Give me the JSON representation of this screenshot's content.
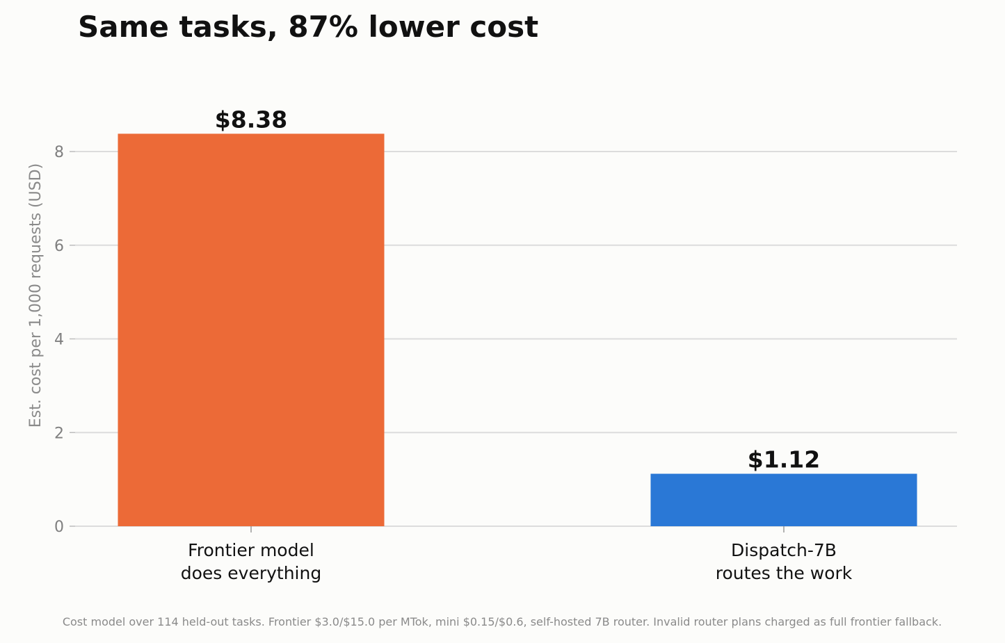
{
  "chart_data": {
    "type": "bar",
    "title": "Same tasks, 87% lower cost",
    "ylabel": "Est. cost per 1,000 requests (USD)",
    "ylim": [
      0,
      9
    ],
    "yticks": [
      0,
      2,
      4,
      6,
      8
    ],
    "grid": true,
    "categories": [
      [
        "Frontier model",
        "does everything"
      ],
      [
        "Dispatch-7B",
        "routes the work"
      ]
    ],
    "values": [
      8.38,
      1.12
    ],
    "data_labels": [
      "$8.38",
      "$1.12"
    ],
    "colors": [
      "#ec6a37",
      "#2a78d6"
    ]
  },
  "footnote": "Cost model over 114 held-out tasks. Frontier $3.0/$15.0 per MTok, mini $0.15/$0.6, self-hosted 7B router. Invalid router plans charged as full frontier fallback."
}
